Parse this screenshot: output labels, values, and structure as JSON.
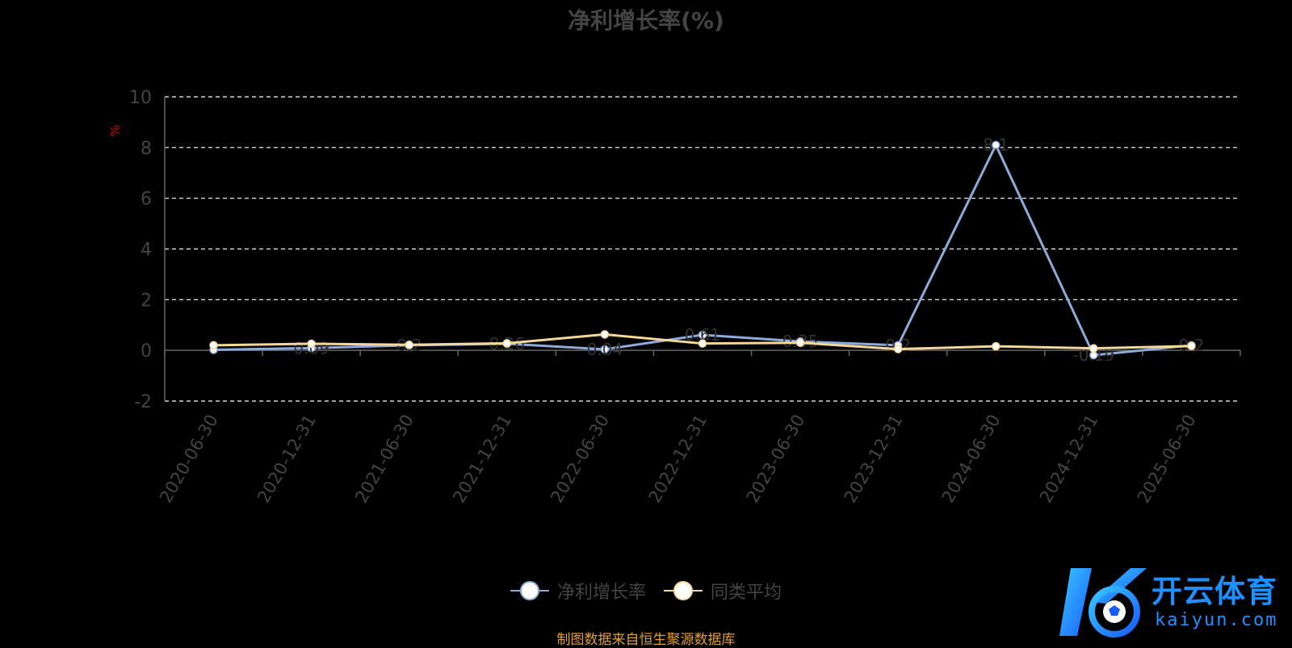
{
  "chart_data": {
    "type": "line",
    "title": "净利增长率(%)",
    "ylabel": "%",
    "categories": [
      "2020-06-30",
      "2020-12-31",
      "2021-06-30",
      "2021-12-31",
      "2022-06-30",
      "2022-12-31",
      "2023-06-30",
      "2023-12-31",
      "2024-06-30",
      "2024-12-31",
      "2025-06-30"
    ],
    "series": [
      {
        "name": "净利增长率",
        "color": "#8eaad8",
        "values": [
          0.02,
          0.09,
          0.2,
          0.26,
          0.04,
          0.61,
          0.35,
          0.2,
          8.1,
          -0.19,
          0.2
        ],
        "data_labels": [
          "",
          "0.09",
          "0.2",
          "0.26",
          "0.04",
          "0.61",
          "0.35",
          "0.2",
          "8.1",
          "-0.19",
          "0.2"
        ]
      },
      {
        "name": "同类平均",
        "color": "#f5d79a",
        "values": [
          0.2,
          0.26,
          0.22,
          0.28,
          0.63,
          0.27,
          0.3,
          0.05,
          0.16,
          0.08,
          0.17
        ]
      }
    ],
    "ylim": [
      -2,
      10
    ],
    "yticks": [
      10,
      8,
      6,
      4,
      2,
      0,
      -2
    ],
    "grid": true,
    "legend_position": "bottom-center"
  },
  "source_note": "制图数据来自恒生聚源数据库",
  "watermark": {
    "cn": "开云体育",
    "en": "kaiyun.com"
  },
  "colors": {
    "background": "#000000",
    "grid": "#ffffff",
    "axis": "#666666",
    "text": "#444444",
    "ylabel": "#cc0000",
    "note": "#e0a030"
  }
}
